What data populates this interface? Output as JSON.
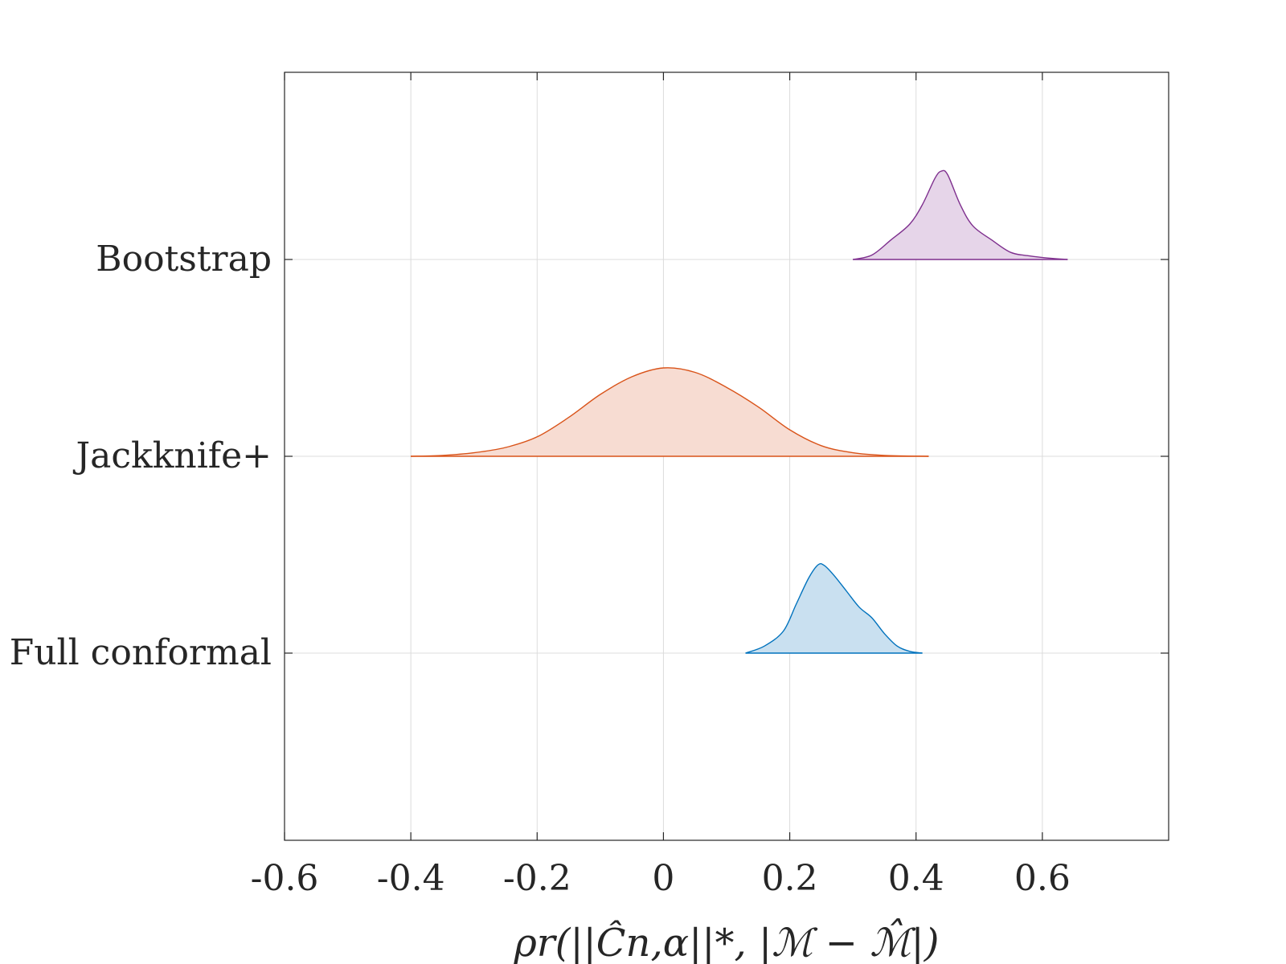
{
  "chart_data": {
    "type": "area",
    "title": "",
    "xlabel": "ρr(||Ĉn,α||*, |ℳ − ℳ̂|)",
    "ylabel": "",
    "xlim": [
      -0.6,
      0.8
    ],
    "xticks": [
      -0.6,
      -0.4,
      -0.2,
      0,
      0.2,
      0.4,
      0.6
    ],
    "xtick_labels": [
      "-0.6",
      "-0.4",
      "-0.2",
      "0",
      "0.2",
      "0.4",
      "0.6"
    ],
    "categories": [
      "Full conformal",
      "Jackknife+",
      "Bootstrap"
    ],
    "grid": true,
    "series": [
      {
        "name": "Full conformal",
        "color": "#0072BD",
        "fill": "#c9e0f0",
        "x": [
          0.13,
          0.16,
          0.19,
          0.21,
          0.23,
          0.245,
          0.255,
          0.27,
          0.29,
          0.31,
          0.33,
          0.35,
          0.37,
          0.39,
          0.41
        ],
        "density": [
          0.0,
          0.08,
          0.25,
          0.55,
          0.85,
          1.0,
          0.99,
          0.88,
          0.7,
          0.52,
          0.4,
          0.22,
          0.08,
          0.02,
          0.0
        ]
      },
      {
        "name": "Jackknife+",
        "color": "#D95319",
        "fill": "#f7dcd2",
        "x": [
          -0.4,
          -0.35,
          -0.3,
          -0.25,
          -0.2,
          -0.15,
          -0.1,
          -0.05,
          0.0,
          0.05,
          0.1,
          0.15,
          0.2,
          0.25,
          0.3,
          0.35,
          0.42
        ],
        "density": [
          0.0,
          0.01,
          0.04,
          0.1,
          0.22,
          0.44,
          0.7,
          0.9,
          1.0,
          0.95,
          0.78,
          0.56,
          0.3,
          0.12,
          0.04,
          0.01,
          0.0
        ]
      },
      {
        "name": "Bootstrap",
        "color": "#7E2F8E",
        "fill": "#e6d5e9",
        "x": [
          0.3,
          0.33,
          0.36,
          0.39,
          0.41,
          0.43,
          0.44,
          0.45,
          0.47,
          0.49,
          0.52,
          0.55,
          0.58,
          0.61,
          0.64
        ],
        "density": [
          0.0,
          0.05,
          0.22,
          0.4,
          0.62,
          0.92,
          1.0,
          0.96,
          0.62,
          0.38,
          0.22,
          0.08,
          0.04,
          0.015,
          0.0
        ]
      }
    ]
  }
}
